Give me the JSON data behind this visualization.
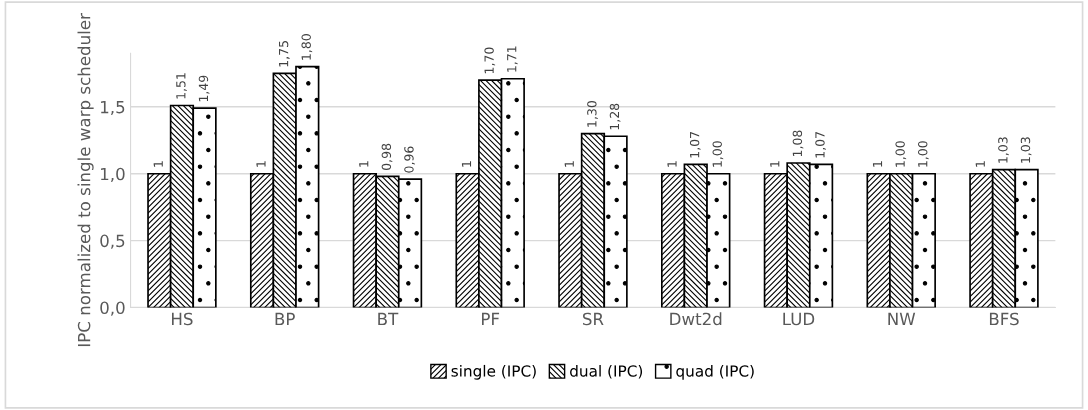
{
  "chart_data": {
    "type": "bar",
    "ylabel": "IPC normalized to single warp scheduler",
    "categories": [
      "HS",
      "BP",
      "BT",
      "PF",
      "SR",
      "Dwt2d",
      "LUD",
      "NW",
      "BFS"
    ],
    "series": [
      {
        "name": "single (IPC)",
        "color": "#000000",
        "values": [
          1,
          1,
          1,
          1,
          1,
          1,
          1,
          1,
          1
        ],
        "value_labels": [
          "1",
          "1",
          "1",
          "1",
          "1",
          "1",
          "1",
          "1",
          "1"
        ]
      },
      {
        "name": "dual (IPC)",
        "color": "#000000",
        "values": [
          1.51,
          1.75,
          0.98,
          1.7,
          1.3,
          1.07,
          1.08,
          1.0,
          1.03
        ],
        "value_labels": [
          "1,51",
          "1,75",
          "0,98",
          "1,70",
          "1,30",
          "1,07",
          "1,08",
          "1,00",
          "1,03"
        ]
      },
      {
        "name": "quad (IPC)",
        "color": "#000000",
        "values": [
          1.49,
          1.8,
          0.96,
          1.71,
          1.28,
          1.0,
          1.07,
          1.0,
          1.03
        ],
        "value_labels": [
          "1,49",
          "1,80",
          "0,96",
          "1,71",
          "1,28",
          "1,00",
          "1,07",
          "1,00",
          "1,03"
        ]
      }
    ],
    "ylim": [
      0,
      1.9
    ],
    "yticks": [
      {
        "value": 0,
        "label": "0,0"
      },
      {
        "value": 0.5,
        "label": "0,5"
      },
      {
        "value": 1.0,
        "label": "1,0"
      },
      {
        "value": 1.5,
        "label": "1,5"
      }
    ],
    "grid": "y",
    "legend": "bottom"
  }
}
